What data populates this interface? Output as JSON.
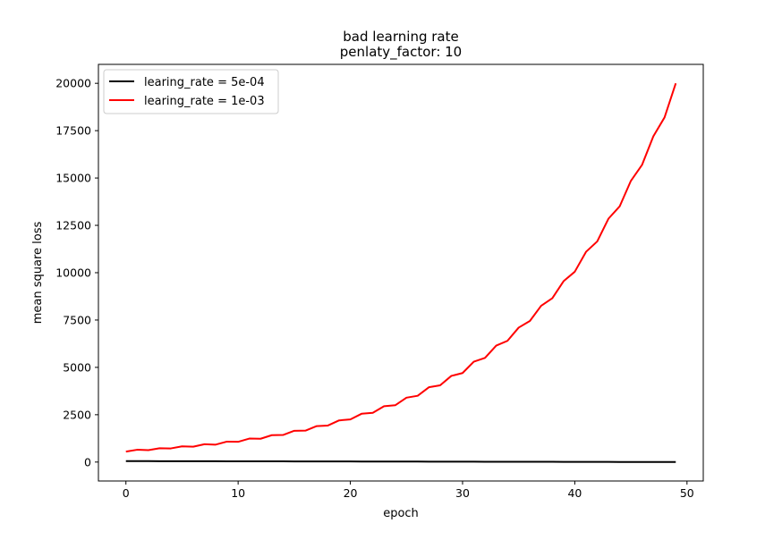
{
  "chart_data": {
    "type": "line",
    "title": "bad learning rate",
    "subtitle": "penlaty_factor: 10",
    "xlabel": "epoch",
    "ylabel": "mean square loss",
    "xlim": [
      -2.45,
      51.45
    ],
    "ylim": [
      -1000,
      21000
    ],
    "xticks": [
      0,
      10,
      20,
      30,
      40,
      50
    ],
    "yticks": [
      0,
      2500,
      5000,
      7500,
      10000,
      12500,
      15000,
      17500,
      20000
    ],
    "grid": false,
    "legend_position": "top-left",
    "x": [
      0,
      1,
      2,
      3,
      4,
      5,
      6,
      7,
      8,
      9,
      10,
      11,
      12,
      13,
      14,
      15,
      16,
      17,
      18,
      19,
      20,
      21,
      22,
      23,
      24,
      25,
      26,
      27,
      28,
      29,
      30,
      31,
      32,
      33,
      34,
      35,
      36,
      37,
      38,
      39,
      40,
      41,
      42,
      43,
      44,
      45,
      46,
      47,
      48,
      49
    ],
    "series": [
      {
        "name": "learing_rate = 5e-04",
        "color": "#000000",
        "values": [
          50,
          49,
          48,
          47,
          46,
          45,
          44,
          43,
          42,
          41,
          40,
          39,
          38,
          37,
          36,
          35,
          34,
          33,
          32,
          31,
          30,
          29,
          28,
          27,
          26,
          25,
          24,
          23,
          22,
          21,
          20,
          19,
          18,
          17,
          16,
          15,
          14,
          13,
          12,
          11,
          10,
          9,
          8,
          7,
          6,
          5,
          4,
          3,
          2,
          1
        ]
      },
      {
        "name": "learing_rate = 1e-03",
        "color": "#ff0000",
        "values": [
          550,
          650,
          630,
          730,
          720,
          830,
          810,
          940,
          920,
          1080,
          1070,
          1240,
          1230,
          1420,
          1430,
          1650,
          1660,
          1900,
          1930,
          2200,
          2250,
          2550,
          2600,
          2950,
          3000,
          3400,
          3500,
          3950,
          4050,
          4550,
          4700,
          5300,
          5500,
          6150,
          6400,
          7100,
          7450,
          8250,
          8650,
          9550,
          10050,
          11100,
          11650,
          12850,
          13500,
          14850,
          15700,
          17200,
          18200,
          20000
        ]
      }
    ]
  }
}
